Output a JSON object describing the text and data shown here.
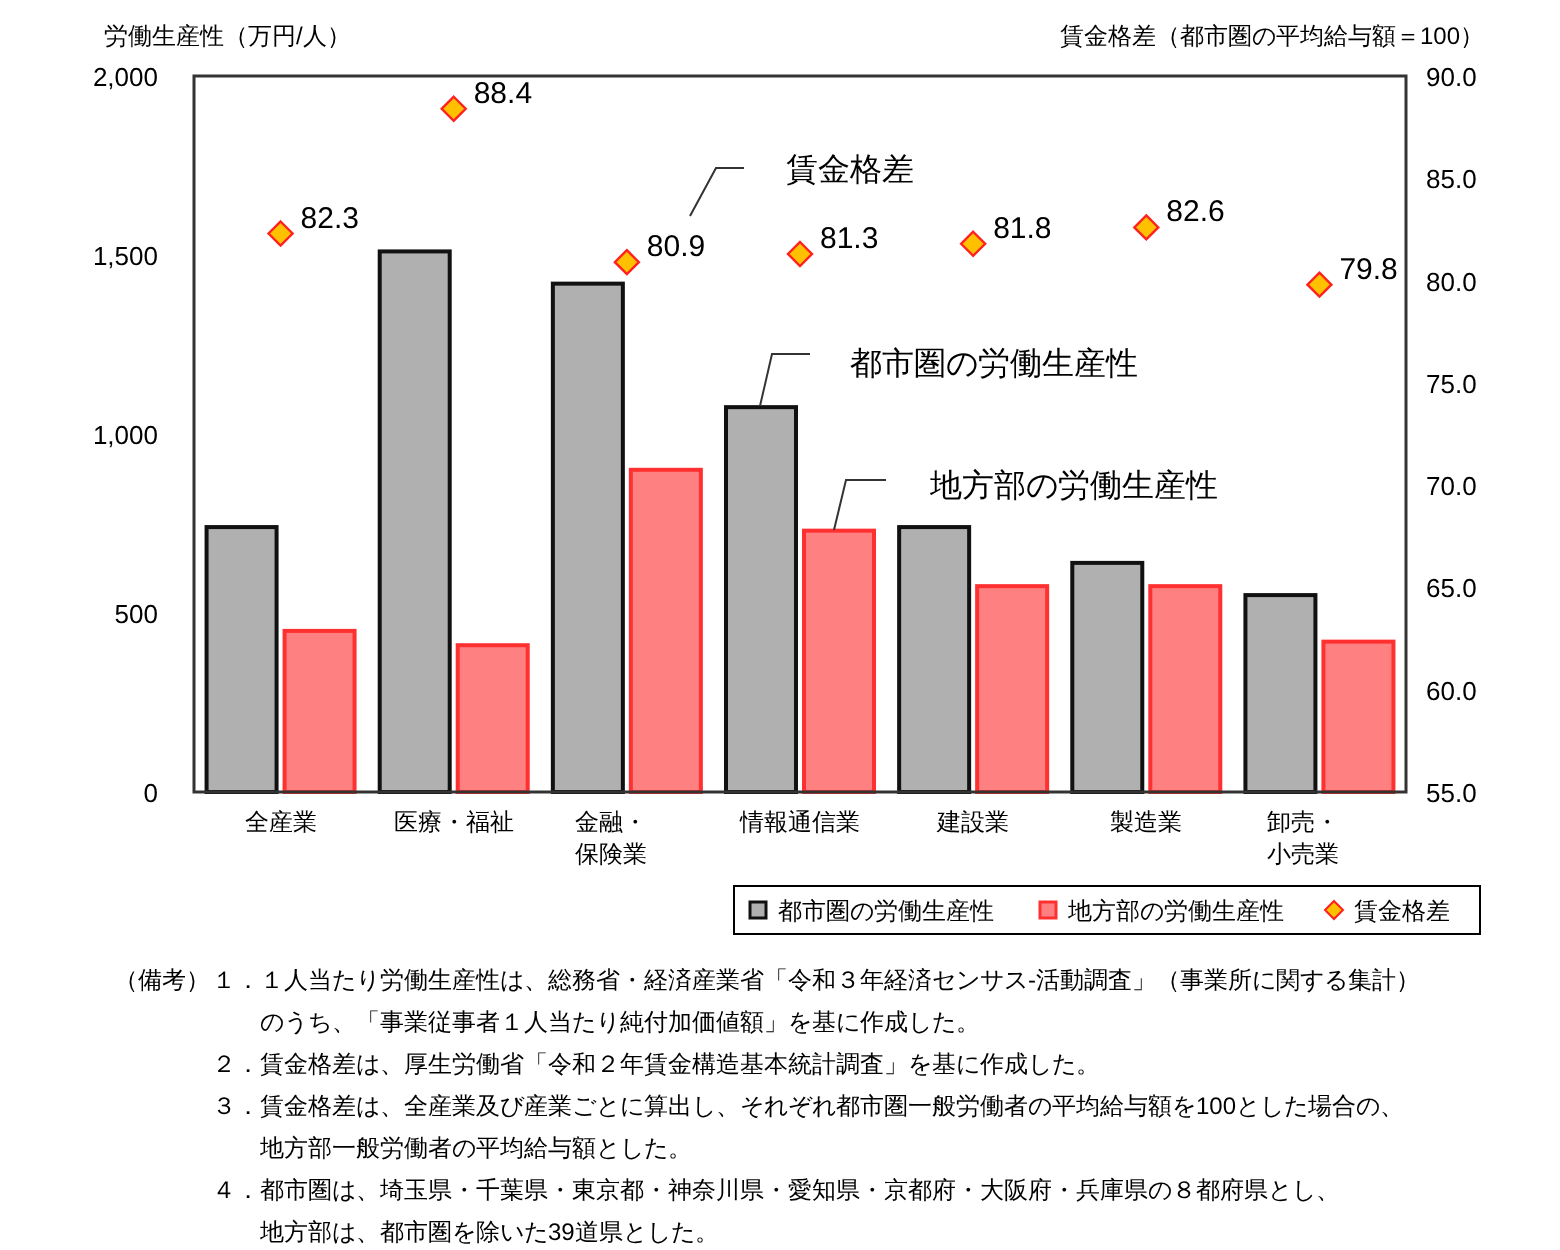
{
  "chart_data": {
    "type": "bar",
    "categories": [
      "全産業",
      "医療・福祉",
      "金融・保険業",
      "情報通信業",
      "建設業",
      "製造業",
      "卸売・小売業"
    ],
    "ylabel": "労働生産性（万円/人）",
    "y2label": "賃金格差（都市圏の平均給与額＝100）",
    "ylim": [
      0,
      2000
    ],
    "yticks": [
      0,
      500,
      {
        "value": 1000,
        "label": "1,000"
      },
      {
        "value": 1500,
        "label": "1,500"
      },
      {
        "value": 2000,
        "label": "2,000"
      }
    ],
    "y2lim": [
      55,
      90
    ],
    "y2ticks": [
      {
        "value": 55,
        "label": "55.0"
      },
      {
        "value": 60,
        "label": "60.0"
      },
      {
        "value": 65,
        "label": "65.0"
      },
      {
        "value": 70,
        "label": "70.0"
      },
      {
        "value": 75,
        "label": "75.0"
      },
      {
        "value": 80,
        "label": "80.0"
      },
      {
        "value": 85,
        "label": "85.0"
      },
      {
        "value": 90,
        "label": "90.0"
      }
    ],
    "series": [
      {
        "name": "都市圏の労働生産性",
        "color": "#b0b0b0",
        "values": [
          740,
          1510,
          1420,
          1075,
          740,
          640,
          550
        ]
      },
      {
        "name": "地方部の労働生産性",
        "color": "#ff8080",
        "values": [
          450,
          410,
          900,
          730,
          575,
          575,
          420
        ]
      },
      {
        "name": "賃金格差",
        "type": "scatter",
        "axis": "y2",
        "color": "#ffc000",
        "values": [
          82.3,
          88.4,
          80.9,
          81.3,
          81.8,
          82.6,
          79.8
        ],
        "value_labels": [
          "82.3",
          "88.4",
          "80.9",
          "81.3",
          "81.8",
          "82.6",
          "79.8"
        ]
      }
    ],
    "marker": "diamond",
    "legend": "bottom right",
    "grid": false,
    "annotations": [
      "賃金格差",
      "都市圏の労働生産性",
      "地方部の労働生産性",
      "（備考）",
      "１．１人当たり労働生産性は、総務省・経済産業省「令和３年経済センサス‐活動調査」（事業所に関する集計）",
      "のうち、「事業従事者１人当たり純付加価値額」を基に作成した。",
      "２．賃金格差は、厚生労働省「令和２年賃金構造基本統計調査」を基に作成した。",
      "３．賃金格差は、全産業及び産業ごとに算出し、それぞれ都市圏一般労働者の平均給与額を100とした場合の、",
      "地方部一般労働者の平均給与額とした。",
      "４．都市圏は、埼玉県・千葉県・東京都・神奈川県・愛知県・京都府・大阪府・兵庫県の８都府県とし、",
      "地方部は、都市圏を除いた39道県とした。"
    ]
  }
}
